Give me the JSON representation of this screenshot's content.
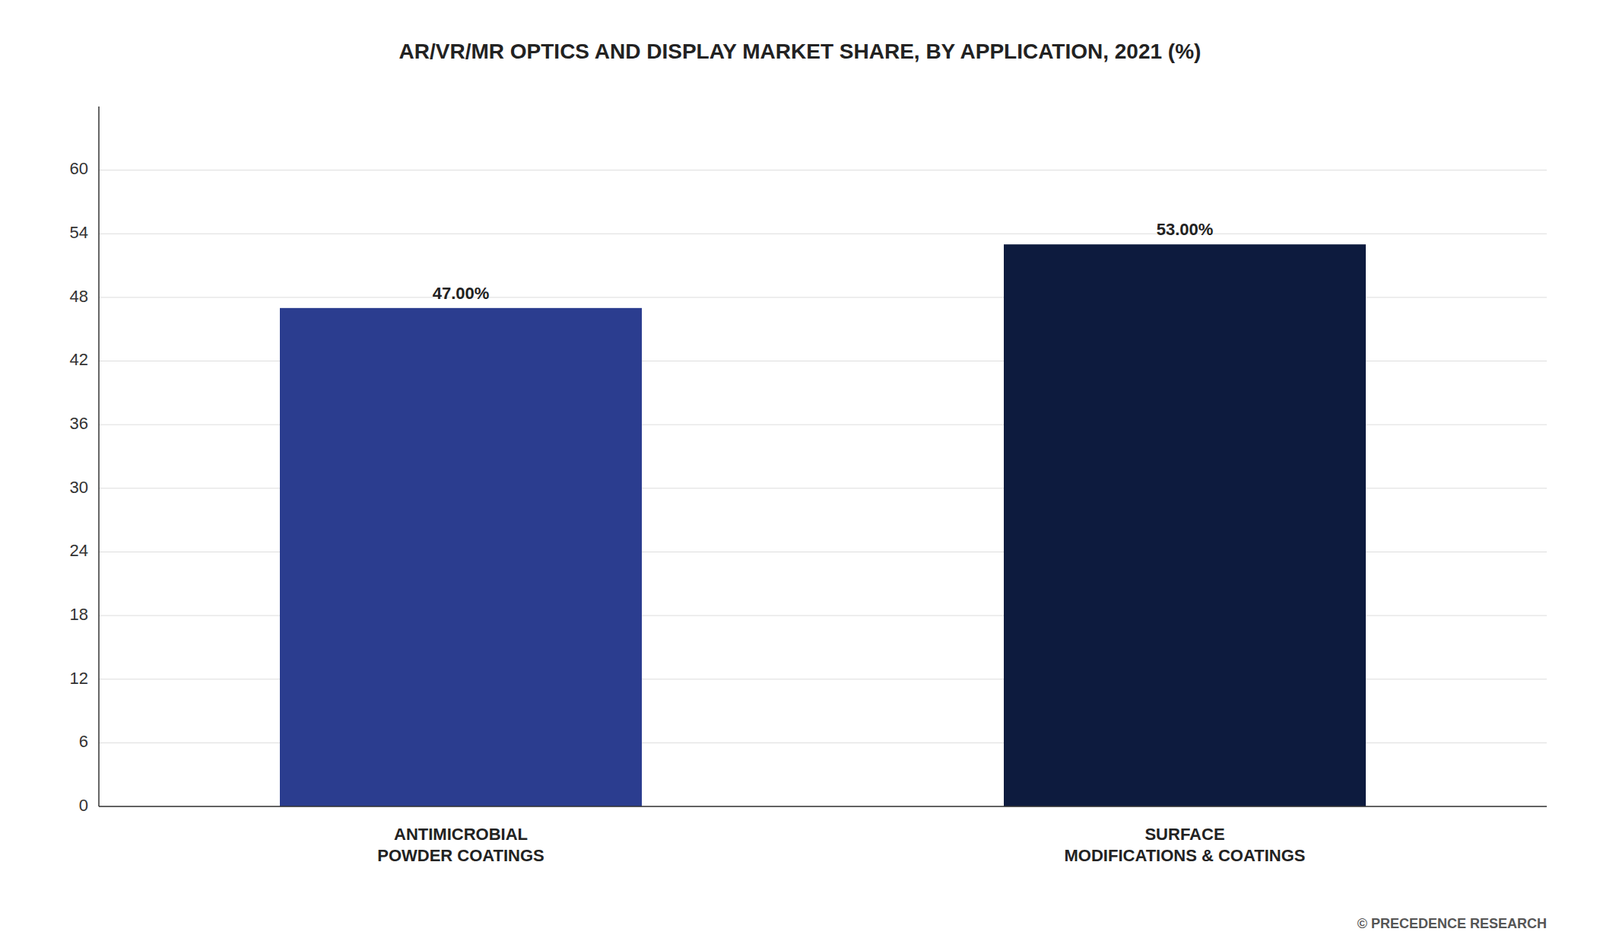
{
  "chart_data": {
    "type": "bar",
    "title": "AR/VR/MR OPTICS AND DISPLAY MARKET SHARE, BY APPLICATION, 2021 (%)",
    "categories": [
      "ANTIMICROBIAL\nPOWDER COATINGS",
      "SURFACE\nMODIFICATIONS & COATINGS"
    ],
    "values": [
      47.0,
      53.0
    ],
    "value_labels": [
      "47.00%",
      "53.00%"
    ],
    "colors": [
      "#2b3d8f",
      "#0d1b3e"
    ],
    "ylim": [
      0,
      66
    ],
    "yticks": [
      0,
      6,
      12,
      18,
      24,
      30,
      36,
      42,
      48,
      54,
      60
    ],
    "grid": true,
    "data_labels": true,
    "annotations": [
      "© PRECEDENCE RESEARCH"
    ]
  }
}
